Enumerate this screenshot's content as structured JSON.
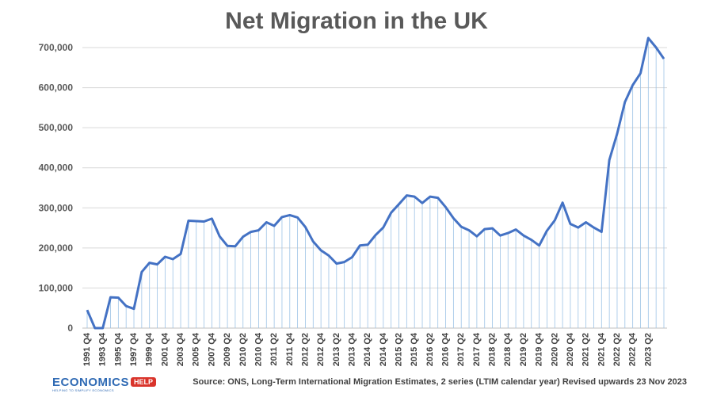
{
  "logo": {
    "text": "ECONOMICS",
    "badge": "HELP",
    "tagline": "HELPING TO SIMPLIFY ECONOMICS"
  },
  "source_note": "Source: ONS, Long-Term International Migration Estimates, 2 series (LTIM calendar year) Revised upwards 23 Nov 2023",
  "colors": {
    "line": "#4472c4",
    "drop_lines": "#9dc3e6",
    "gridline": "#d9d9d9",
    "text": "#595959"
  },
  "chart_data": {
    "type": "line",
    "title": "Net Migration in the UK",
    "xlabel": "",
    "ylabel": "",
    "ylim": [
      0,
      700000
    ],
    "yticks": [
      0,
      100000,
      200000,
      300000,
      400000,
      500000,
      600000,
      700000
    ],
    "ytick_labels": [
      "0",
      "100,000",
      "200,000",
      "300,000",
      "400,000",
      "500,000",
      "600,000",
      "700,000"
    ],
    "grid": true,
    "legend": "none",
    "drop_lines": true,
    "x_tick_labels": [
      "1991 Q4",
      "1993 Q4",
      "1995 Q4",
      "1997 Q4",
      "1999 Q4",
      "2001 Q4",
      "2003 Q4",
      "2005 Q4",
      "2007 Q4",
      "2009 Q2",
      "2010 Q2",
      "2010 Q4",
      "2011 Q2",
      "2011 Q4",
      "2012 Q2",
      "2012 Q4",
      "2013 Q2",
      "2013 Q4",
      "2014 Q2",
      "2014 Q4",
      "2015 Q2",
      "2015 Q4",
      "2016 Q2",
      "2016 Q4",
      "2017 Q2",
      "2017 Q4",
      "2018 Q2",
      "2018 Q4",
      "2019 Q2",
      "2019 Q4",
      "2020 Q2",
      "2020 Q4",
      "2021 Q2",
      "2021 Q4",
      "2022 Q2",
      "2022 Q4",
      "2023 Q2"
    ],
    "x_tick_index": [
      0,
      2,
      4,
      6,
      8,
      10,
      12,
      14,
      16,
      18,
      20,
      22,
      24,
      26,
      28,
      30,
      32,
      34,
      36,
      38,
      40,
      42,
      44,
      46,
      48,
      50,
      52,
      54,
      56,
      58,
      60,
      62,
      64,
      66,
      68,
      70,
      72
    ],
    "values": [
      45000,
      -5000,
      -5000,
      77000,
      76000,
      55000,
      48000,
      140000,
      163000,
      159000,
      178000,
      172000,
      185000,
      268000,
      267000,
      266000,
      273000,
      229000,
      205000,
      204000,
      228000,
      240000,
      244000,
      264000,
      255000,
      277000,
      282000,
      276000,
      252000,
      216000,
      194000,
      181000,
      161000,
      165000,
      177000,
      206000,
      208000,
      232000,
      251000,
      288000,
      309000,
      331000,
      328000,
      312000,
      328000,
      325000,
      302000,
      274000,
      253000,
      244000,
      229000,
      247000,
      249000,
      231000,
      237000,
      246000,
      231000,
      220000,
      206000,
      243000,
      269000,
      313000,
      260000,
      251000,
      264000,
      251000,
      240000,
      419000,
      485000,
      564000,
      606000,
      636000,
      745000,
      700000,
      672000
    ]
  }
}
